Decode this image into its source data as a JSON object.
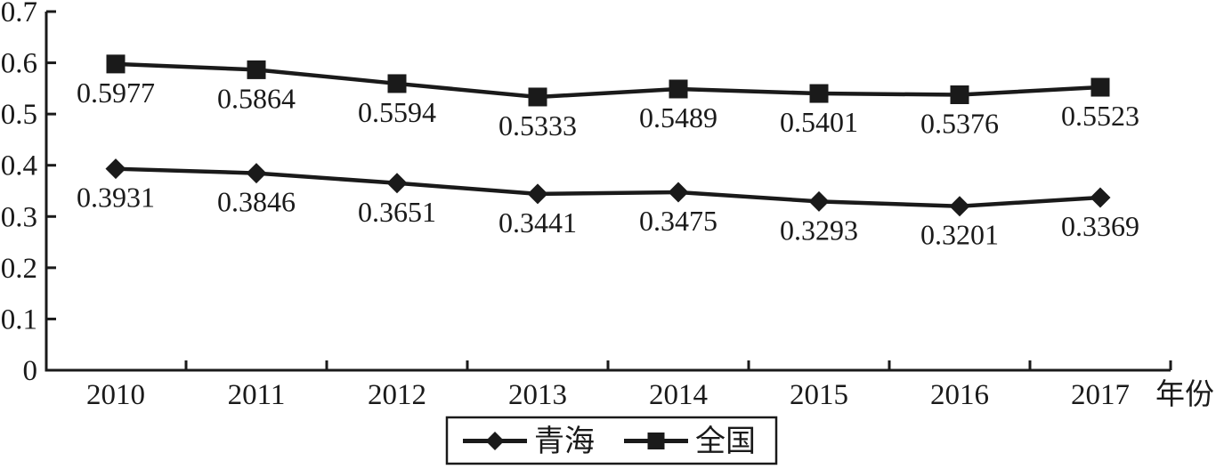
{
  "figure": {
    "background": "#ffffff",
    "ink_color": "#1a1a1a"
  },
  "chart_data": {
    "type": "line",
    "title": "",
    "xlabel": "年份",
    "ylabel": "",
    "categories": [
      "2010",
      "2011",
      "2012",
      "2013",
      "2014",
      "2015",
      "2016",
      "2017"
    ],
    "series": [
      {
        "id": "qinghai",
        "name": "青海",
        "marker": "diamond",
        "color": "#1a1a1a",
        "values": [
          0.3931,
          0.3846,
          0.3651,
          0.3441,
          0.3475,
          0.3293,
          0.3201,
          0.3369
        ],
        "labels": [
          "0.3931",
          "0.3846",
          "0.3651",
          "0.3441",
          "0.3475",
          "0.3293",
          "0.3201",
          "0.3369"
        ]
      },
      {
        "id": "national",
        "name": "全国",
        "marker": "square",
        "color": "#1a1a1a",
        "values": [
          0.5977,
          0.5864,
          0.5594,
          0.5333,
          0.5489,
          0.5401,
          0.5376,
          0.5523
        ],
        "labels": [
          "0.5977",
          "0.5864",
          "0.5594",
          "0.5333",
          "0.5489",
          "0.5401",
          "0.5376",
          "0.5523"
        ]
      }
    ],
    "ylim": [
      0,
      0.7
    ],
    "yticks": [
      "0",
      "0.1",
      "0.2",
      "0.3",
      "0.4",
      "0.5",
      "0.6",
      "0.7"
    ],
    "grid": false,
    "data_labels": true,
    "legend_position": "bottom-center",
    "legend_border": true
  }
}
